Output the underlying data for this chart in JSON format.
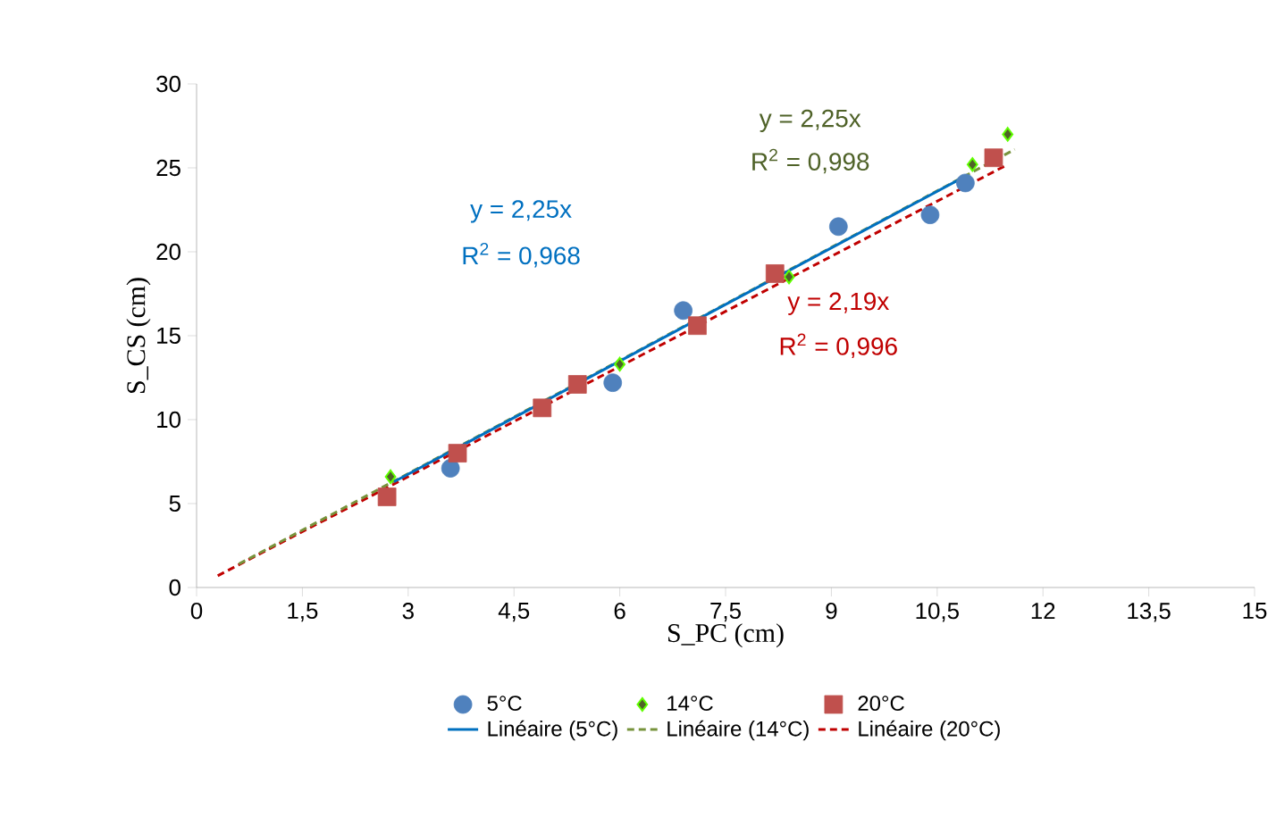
{
  "chart_data": {
    "type": "scatter",
    "xlabel": "S_PC  (cm)",
    "ylabel": "S_CS (cm)",
    "xlim": [
      0,
      15
    ],
    "ylim": [
      0,
      30
    ],
    "xticks": [
      0,
      {
        "value": 1.5,
        "label": "1,5"
      },
      3,
      {
        "value": 4.5,
        "label": "4,5"
      },
      6,
      {
        "value": 7.5,
        "label": "7,5"
      },
      9,
      {
        "value": 10.5,
        "label": "10,5"
      },
      12,
      {
        "value": 13.5,
        "label": "13,5"
      },
      15
    ],
    "yticks": [
      0,
      5,
      10,
      15,
      20,
      25,
      30
    ],
    "grid": false,
    "legend": "bottom",
    "series": [
      {
        "name": "5°C",
        "marker": "circle",
        "color": "#4f81bd",
        "x": [
          3.6,
          5.9,
          6.9,
          9.1,
          10.4,
          10.9
        ],
        "values": [
          7.1,
          12.2,
          16.5,
          21.5,
          22.2,
          24.1
        ]
      },
      {
        "name": "14°C",
        "marker": "diamond",
        "color": "#4f6228",
        "x": [
          2.75,
          6.0,
          8.4,
          11.0,
          11.5
        ],
        "values": [
          6.6,
          13.3,
          18.5,
          25.2,
          27.0
        ]
      },
      {
        "name": "20°C",
        "marker": "square",
        "color": "#c0504d",
        "x": [
          2.7,
          3.7,
          4.9,
          5.4,
          7.1,
          8.2,
          11.3
        ],
        "values": [
          5.4,
          8.0,
          10.7,
          12.1,
          15.6,
          18.7,
          25.6
        ]
      },
      {
        "name": "Linéaire (5°C)",
        "type": "line",
        "line_style": "solid",
        "color": "#0070c0",
        "x": [
          2.8,
          10.9
        ],
        "values": [
          6.3,
          24.5
        ]
      },
      {
        "name": "Linéaire (14°C)",
        "type": "line",
        "line_style": "dashed",
        "color": "#77933c",
        "x": [
          0.6,
          11.6
        ],
        "values": [
          1.4,
          26.1
        ]
      },
      {
        "name": "Linéaire (20°C)",
        "type": "line",
        "line_style": "dashed",
        "color": "#c00000",
        "x": [
          0.3,
          11.5
        ],
        "values": [
          0.7,
          25.2
        ]
      }
    ],
    "annotations": [
      "y = 2,25x",
      "R$^{2}$ = 0,968",
      "y = 2,25x",
      "R$^{2}$ = 0,998",
      "y = 2,19x",
      "R$^{2}$ = 0,996"
    ]
  }
}
